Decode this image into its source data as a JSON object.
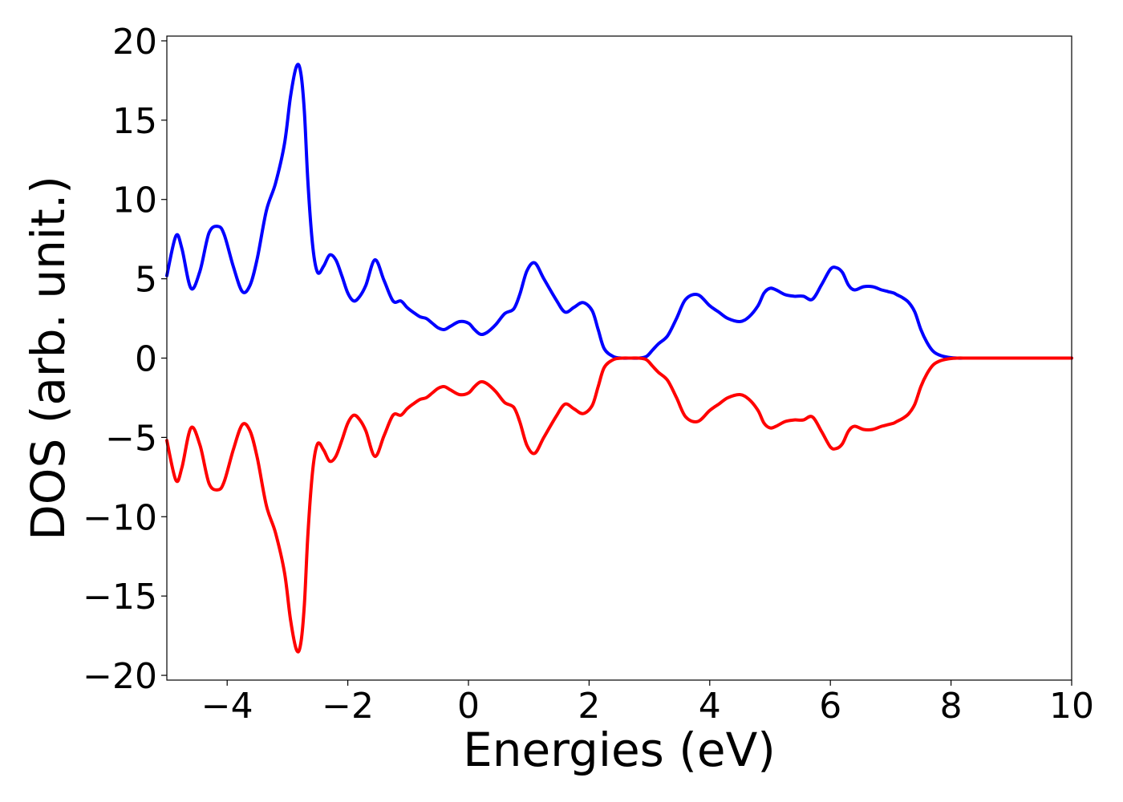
{
  "chart_data": {
    "type": "line",
    "xlabel": "Energies (eV)",
    "ylabel": "DOS (arb. unit.)",
    "xlim": [
      -5,
      10
    ],
    "ylim": [
      -20.3,
      20.3
    ],
    "grid": false,
    "x_ticks": [
      -4,
      -2,
      0,
      2,
      4,
      6,
      8,
      10
    ],
    "x_tick_labels": [
      "−4",
      "−2",
      "0",
      "2",
      "4",
      "6",
      "8",
      "10"
    ],
    "y_ticks": [
      20,
      15,
      10,
      5,
      0,
      -5,
      -10,
      -15,
      -20
    ],
    "y_tick_labels": [
      "20",
      "15",
      "10",
      "5",
      "0",
      "−5",
      "−10",
      "−15",
      "−20"
    ],
    "series": [
      {
        "color": "#0000ff",
        "x": [
          -5.0,
          -4.85,
          -4.75,
          -4.6,
          -4.45,
          -4.3,
          -4.15,
          -4.05,
          -3.9,
          -3.75,
          -3.62,
          -3.5,
          -3.35,
          -3.2,
          -3.05,
          -2.95,
          -2.85,
          -2.78,
          -2.72,
          -2.66,
          -2.58,
          -2.5,
          -2.4,
          -2.3,
          -2.2,
          -2.1,
          -2.0,
          -1.9,
          -1.8,
          -1.7,
          -1.55,
          -1.4,
          -1.25,
          -1.12,
          -1.02,
          -0.92,
          -0.8,
          -0.7,
          -0.6,
          -0.5,
          -0.4,
          -0.3,
          -0.15,
          0.0,
          0.1,
          0.2,
          0.3,
          0.45,
          0.6,
          0.75,
          0.85,
          0.97,
          1.1,
          1.25,
          1.45,
          1.6,
          1.75,
          1.9,
          2.05,
          2.15,
          2.25,
          2.4,
          2.55,
          2.7,
          2.82,
          2.95,
          3.05,
          3.15,
          3.3,
          3.45,
          3.6,
          3.8,
          4.0,
          4.15,
          4.3,
          4.5,
          4.65,
          4.8,
          4.9,
          5.0,
          5.1,
          5.25,
          5.4,
          5.55,
          5.7,
          5.85,
          6.0,
          6.1,
          6.2,
          6.3,
          6.4,
          6.55,
          6.7,
          6.85,
          6.95,
          7.05,
          7.1,
          7.2,
          7.3,
          7.4,
          7.5,
          7.6,
          7.7,
          7.8,
          7.95,
          8.1,
          8.25,
          8.4,
          8.55,
          8.7,
          8.9,
          9.1,
          9.3,
          9.6,
          10.0
        ],
        "y": [
          5.2,
          7.7,
          6.9,
          4.4,
          5.5,
          7.9,
          8.3,
          7.8,
          5.8,
          4.2,
          4.6,
          6.3,
          9.3,
          11.0,
          13.5,
          16.5,
          18.4,
          18.0,
          15.5,
          11.0,
          7.0,
          5.4,
          5.8,
          6.5,
          6.2,
          5.2,
          4.1,
          3.6,
          3.9,
          4.6,
          6.2,
          4.9,
          3.6,
          3.6,
          3.2,
          2.9,
          2.6,
          2.5,
          2.2,
          1.9,
          1.8,
          2.0,
          2.3,
          2.2,
          1.8,
          1.5,
          1.6,
          2.1,
          2.8,
          3.1,
          4.0,
          5.5,
          6.0,
          5.0,
          3.7,
          2.9,
          3.2,
          3.5,
          3.0,
          1.8,
          0.6,
          0.1,
          0.0,
          0.0,
          0.0,
          0.1,
          0.5,
          0.9,
          1.4,
          2.5,
          3.7,
          4.0,
          3.3,
          2.9,
          2.5,
          2.3,
          2.6,
          3.3,
          4.1,
          4.4,
          4.3,
          4.0,
          3.9,
          3.9,
          3.7,
          4.6,
          5.6,
          5.7,
          5.4,
          4.6,
          4.3,
          4.5,
          4.5,
          4.3,
          4.2,
          4.1,
          4.0,
          3.8,
          3.5,
          2.9,
          1.8,
          1.0,
          0.45,
          0.2,
          0.05,
          0.0,
          0.0,
          0.0,
          0.0,
          0.0,
          0.0,
          0.0,
          0.0,
          0.0,
          0.0
        ]
      },
      {
        "color": "#ff0000",
        "x": [
          -5.0,
          -4.85,
          -4.75,
          -4.6,
          -4.45,
          -4.3,
          -4.15,
          -4.05,
          -3.9,
          -3.75,
          -3.62,
          -3.5,
          -3.35,
          -3.2,
          -3.05,
          -2.95,
          -2.85,
          -2.78,
          -2.72,
          -2.66,
          -2.58,
          -2.5,
          -2.4,
          -2.3,
          -2.2,
          -2.1,
          -2.0,
          -1.9,
          -1.8,
          -1.7,
          -1.55,
          -1.4,
          -1.25,
          -1.12,
          -1.02,
          -0.92,
          -0.8,
          -0.7,
          -0.6,
          -0.5,
          -0.4,
          -0.3,
          -0.15,
          0.0,
          0.1,
          0.2,
          0.3,
          0.45,
          0.6,
          0.75,
          0.85,
          0.97,
          1.1,
          1.25,
          1.45,
          1.6,
          1.75,
          1.9,
          2.05,
          2.15,
          2.25,
          2.4,
          2.55,
          2.7,
          2.82,
          2.95,
          3.05,
          3.15,
          3.3,
          3.45,
          3.6,
          3.8,
          4.0,
          4.15,
          4.3,
          4.5,
          4.65,
          4.8,
          4.9,
          5.0,
          5.1,
          5.25,
          5.4,
          5.55,
          5.7,
          5.85,
          6.0,
          6.1,
          6.2,
          6.3,
          6.4,
          6.55,
          6.7,
          6.85,
          6.95,
          7.05,
          7.1,
          7.2,
          7.3,
          7.4,
          7.5,
          7.6,
          7.7,
          7.8,
          7.95,
          8.1,
          8.25,
          8.4,
          8.55,
          8.7,
          8.9,
          9.1,
          9.3,
          9.6,
          10.0
        ],
        "y": [
          -5.2,
          -7.7,
          -6.9,
          -4.4,
          -5.5,
          -7.9,
          -8.3,
          -7.8,
          -5.8,
          -4.2,
          -4.6,
          -6.3,
          -9.3,
          -11.0,
          -13.5,
          -16.5,
          -18.4,
          -18.0,
          -15.5,
          -11.0,
          -7.0,
          -5.4,
          -5.8,
          -6.5,
          -6.2,
          -5.2,
          -4.1,
          -3.6,
          -3.9,
          -4.6,
          -6.2,
          -4.9,
          -3.6,
          -3.6,
          -3.2,
          -2.9,
          -2.6,
          -2.5,
          -2.2,
          -1.9,
          -1.8,
          -2.0,
          -2.3,
          -2.2,
          -1.8,
          -1.5,
          -1.6,
          -2.1,
          -2.8,
          -3.1,
          -4.0,
          -5.5,
          -6.0,
          -5.0,
          -3.7,
          -2.9,
          -3.2,
          -3.5,
          -3.0,
          -1.8,
          -0.6,
          -0.1,
          0.0,
          0.0,
          0.0,
          -0.1,
          -0.5,
          -0.9,
          -1.4,
          -2.5,
          -3.7,
          -4.0,
          -3.3,
          -2.9,
          -2.5,
          -2.3,
          -2.6,
          -3.3,
          -4.1,
          -4.4,
          -4.3,
          -4.0,
          -3.9,
          -3.9,
          -3.7,
          -4.6,
          -5.6,
          -5.7,
          -5.4,
          -4.6,
          -4.3,
          -4.5,
          -4.5,
          -4.3,
          -4.2,
          -4.1,
          -4.0,
          -3.8,
          -3.5,
          -2.9,
          -1.8,
          -1.0,
          -0.45,
          -0.2,
          -0.05,
          0.0,
          0.0,
          0.0,
          0.0,
          0.0,
          0.0,
          0.0,
          0.0,
          0.0,
          0.0
        ]
      }
    ]
  }
}
